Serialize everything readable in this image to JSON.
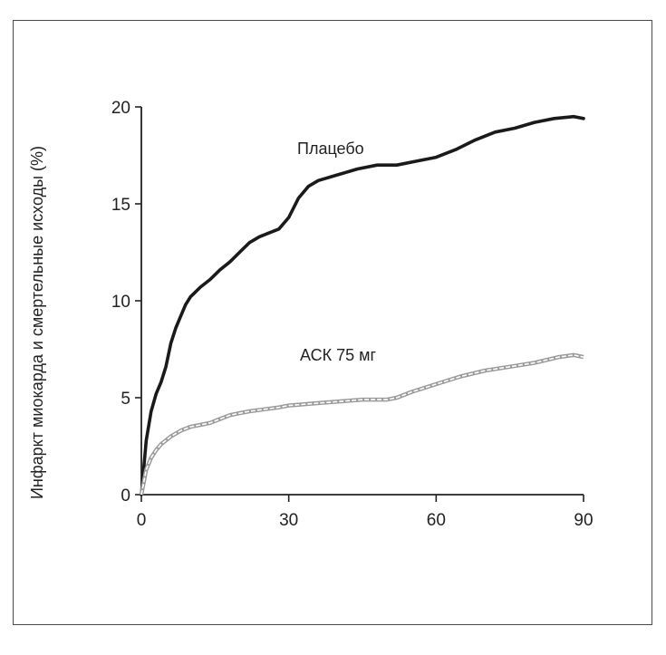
{
  "chart_data": {
    "type": "line",
    "title": "",
    "xlabel": "",
    "ylabel": "Инфаркт миокарда и смертельные исходы (%)",
    "xlim": [
      0,
      90
    ],
    "ylim": [
      0,
      20
    ],
    "xticks": [
      0,
      30,
      60,
      90
    ],
    "yticks": [
      0,
      5,
      10,
      15,
      20
    ],
    "x_tick_labels": [
      "0",
      "30",
      "60",
      "90"
    ],
    "y_tick_labels": [
      "0",
      "5",
      "10",
      "15",
      "20"
    ],
    "grid": false,
    "legend": "inline labels",
    "series": [
      {
        "name": "Плацебо",
        "color": "#1a1a1a",
        "style": "solid-thick",
        "x": [
          0,
          1,
          2,
          3,
          4,
          5,
          6,
          7,
          8,
          9,
          10,
          12,
          14,
          16,
          18,
          20,
          22,
          24,
          26,
          28,
          30,
          32,
          34,
          36,
          40,
          44,
          48,
          52,
          56,
          60,
          64,
          68,
          72,
          76,
          80,
          84,
          88,
          90
        ],
        "y": [
          0,
          2.8,
          4.3,
          5.2,
          5.8,
          6.6,
          7.8,
          8.6,
          9.2,
          9.8,
          10.2,
          10.7,
          11.1,
          11.6,
          12.0,
          12.5,
          13.0,
          13.3,
          13.5,
          13.7,
          14.3,
          15.3,
          15.9,
          16.2,
          16.5,
          16.8,
          17.0,
          17.0,
          17.2,
          17.4,
          17.8,
          18.3,
          18.7,
          18.9,
          19.2,
          19.4,
          19.5,
          19.4
        ]
      },
      {
        "name": "АСК 75 мг",
        "color": "#9a9a9a",
        "style": "double-thin",
        "x": [
          0,
          1,
          2,
          3,
          4,
          5,
          6,
          8,
          10,
          12,
          14,
          16,
          18,
          20,
          22,
          25,
          28,
          30,
          35,
          40,
          45,
          50,
          52,
          55,
          60,
          65,
          70,
          75,
          80,
          85,
          88,
          90
        ],
        "y": [
          0,
          1.3,
          1.9,
          2.3,
          2.6,
          2.8,
          3.0,
          3.3,
          3.5,
          3.6,
          3.7,
          3.9,
          4.1,
          4.2,
          4.3,
          4.4,
          4.5,
          4.6,
          4.7,
          4.8,
          4.9,
          4.9,
          5.0,
          5.3,
          5.7,
          6.1,
          6.4,
          6.6,
          6.8,
          7.1,
          7.2,
          7.1
        ]
      }
    ],
    "annotations": [
      "Плацебо",
      "АСК 75 мг"
    ]
  }
}
